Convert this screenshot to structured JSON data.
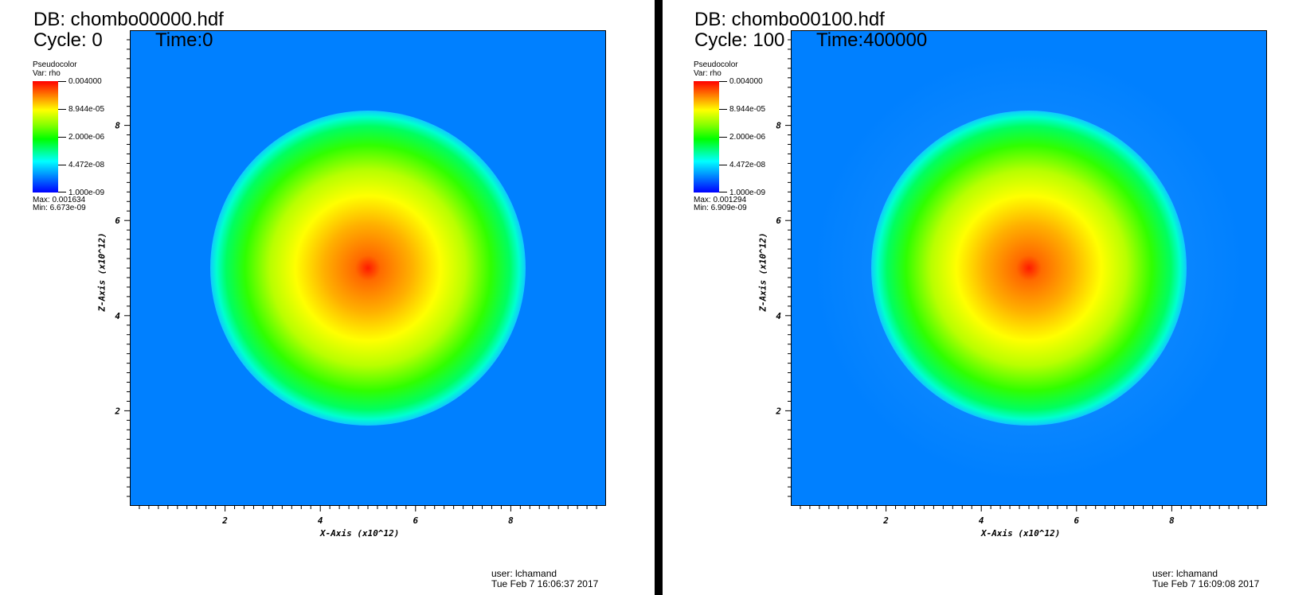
{
  "panels": [
    {
      "db": "DB: chombo00000.hdf",
      "cycle": "Cycle: 0",
      "time": "Time:0",
      "legend": {
        "title": "Pseudocolor",
        "var": "Var: rho",
        "ticks": [
          "0.004000",
          "8.944e-05",
          "2.000e-06",
          "4.472e-08",
          "1.000e-09"
        ],
        "max": "Max:  0.001634",
        "min": "Min:  6.673e-09"
      },
      "footer": {
        "user": "user: lchamand",
        "date": "Tue Feb  7 16:06:37 2017"
      }
    },
    {
      "db": "DB: chombo00100.hdf",
      "cycle": "Cycle: 100",
      "time": "Time:400000",
      "legend": {
        "title": "Pseudocolor",
        "var": "Var: rho",
        "ticks": [
          "0.004000",
          "8.944e-05",
          "2.000e-06",
          "4.472e-08",
          "1.000e-09"
        ],
        "max": "Max:  0.001294",
        "min": "Min:  6.909e-09"
      },
      "footer": {
        "user": "user: lchamand",
        "date": "Tue Feb  7 16:09:08 2017"
      }
    }
  ],
  "chart_data": [
    {
      "type": "heatmap",
      "title": "DB: chombo00000.hdf",
      "xlabel": "X-Axis (x10^12)",
      "ylabel": "Z-Axis (x10^12)",
      "xlim": [
        0,
        10
      ],
      "ylim": [
        0,
        10
      ],
      "x_ticks": [
        "2",
        "4",
        "6",
        "8"
      ],
      "y_ticks": [
        "2",
        "4",
        "6",
        "8"
      ],
      "variable": "rho",
      "colorbar_ticks": [
        "0.004000",
        "8.944e-05",
        "2.000e-06",
        "4.472e-08",
        "1.000e-09"
      ],
      "max": 0.001634,
      "min": 6.673e-09,
      "feature": {
        "shape": "disk",
        "center": [
          5,
          5
        ],
        "radius": 3.3,
        "peak": "red at center, yellow, green, cyan rim",
        "background": "blue"
      }
    },
    {
      "type": "heatmap",
      "title": "DB: chombo00100.hdf",
      "xlabel": "X-Axis (x10^12)",
      "ylabel": "Z-Axis (x10^12)",
      "xlim": [
        0,
        10
      ],
      "ylim": [
        0,
        10
      ],
      "x_ticks": [
        "2",
        "4",
        "6",
        "8"
      ],
      "y_ticks": [
        "2",
        "4",
        "6",
        "8"
      ],
      "variable": "rho",
      "colorbar_ticks": [
        "0.004000",
        "8.944e-05",
        "2.000e-06",
        "4.472e-08",
        "1.000e-09"
      ],
      "max": 0.001294,
      "min": 6.909e-09,
      "feature": {
        "shape": "disk",
        "center": [
          5,
          5
        ],
        "radius": 3.3,
        "peak": "red at center, yellow, green, cyan rim",
        "background": "blue",
        "faint_halo_radius": 4.5
      }
    }
  ],
  "colors": {
    "background_field": "#0080ff",
    "divider": "#000000"
  }
}
